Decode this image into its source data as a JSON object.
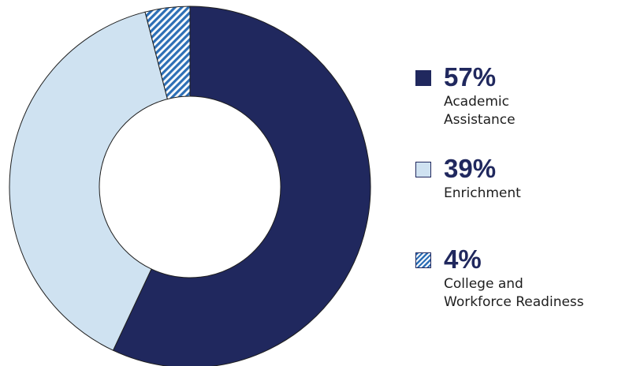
{
  "chart_data": {
    "type": "pie",
    "slices": [
      {
        "value_label": "57%",
        "label": "Academic Assistance",
        "label_lines": [
          "Academic",
          "Assistance"
        ],
        "value": 57,
        "color": "#20285e",
        "pattern": "solid"
      },
      {
        "value_label": "39%",
        "label": "Enrichment",
        "label_lines": [
          "Enrichment"
        ],
        "value": 39,
        "color": "#cfe2f1",
        "pattern": "solid"
      },
      {
        "value_label": "4%",
        "label": "College and Workforce Readiness",
        "label_lines": [
          "College and",
          "Workforce Readiness"
        ],
        "value": 4,
        "color": "#2d6fb6",
        "pattern": "diagonal-hatch"
      }
    ],
    "legend_position": "right"
  },
  "colors": {
    "outline": "#1e1e1e",
    "text": "#1e1e1e",
    "accent": "#20285e"
  }
}
